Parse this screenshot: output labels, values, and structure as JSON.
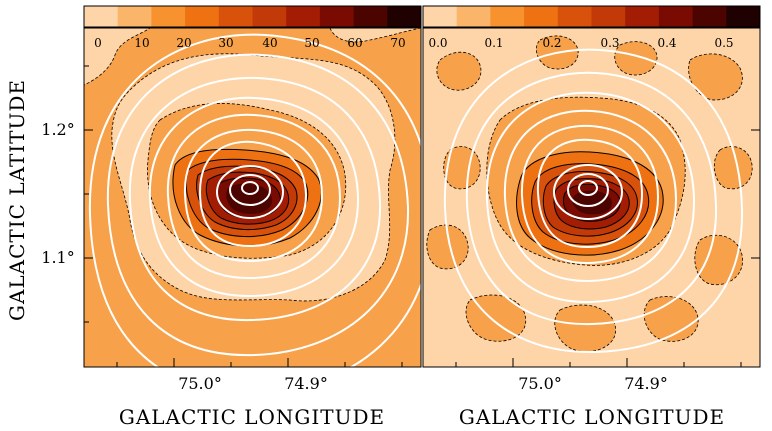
{
  "figure": {
    "x_axis_title": "GALACTIC LONGITUDE",
    "y_axis_title": "GALACTIC LATITUDE",
    "y_ticks": [
      "1.2°",
      "1.1°"
    ],
    "panels": [
      {
        "id": "left",
        "colorbar_ticks": [
          "0",
          "10",
          "20",
          "30",
          "40",
          "50",
          "60",
          "70"
        ],
        "x_ticks": [
          "75.0°",
          "74.9°"
        ]
      },
      {
        "id": "right",
        "colorbar_ticks": [
          "0.0",
          "0.1",
          "0.2",
          "0.3",
          "0.4",
          "0.5"
        ],
        "x_ticks": [
          "75.0°",
          "74.9°"
        ]
      }
    ],
    "colors": {
      "colormap": [
        "#fdd5a8",
        "#fbb56a",
        "#f7922e",
        "#ee7212",
        "#d9520b",
        "#c23a07",
        "#a31c04",
        "#7a0b02",
        "#4c0401",
        "#1e0100"
      ],
      "contour_white": "#ffffff",
      "contour_black": "#000000"
    }
  }
}
